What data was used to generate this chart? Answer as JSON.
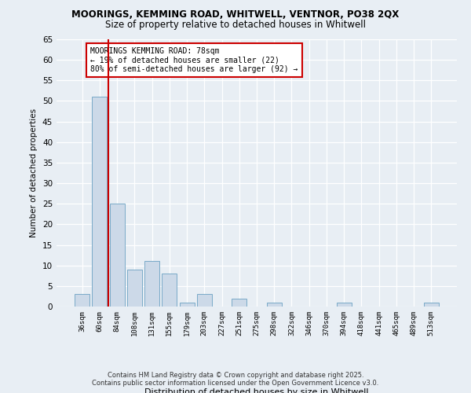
{
  "title1": "MOORINGS, KEMMING ROAD, WHITWELL, VENTNOR, PO38 2QX",
  "title2": "Size of property relative to detached houses in Whitwell",
  "xlabel": "Distribution of detached houses by size in Whitwell",
  "ylabel": "Number of detached properties",
  "categories": [
    "36sqm",
    "60sqm",
    "84sqm",
    "108sqm",
    "131sqm",
    "155sqm",
    "179sqm",
    "203sqm",
    "227sqm",
    "251sqm",
    "275sqm",
    "298sqm",
    "322sqm",
    "346sqm",
    "370sqm",
    "394sqm",
    "418sqm",
    "441sqm",
    "465sqm",
    "489sqm",
    "513sqm"
  ],
  "values": [
    3,
    51,
    25,
    9,
    11,
    8,
    1,
    3,
    0,
    2,
    0,
    1,
    0,
    0,
    0,
    1,
    0,
    0,
    0,
    0,
    1
  ],
  "bar_color": "#ccd9e8",
  "bar_edge_color": "#7aaac8",
  "vline_color": "#cc0000",
  "annotation_text": "MOORINGS KEMMING ROAD: 78sqm\n← 19% of detached houses are smaller (22)\n80% of semi-detached houses are larger (92) →",
  "annotation_box_color": "#ffffff",
  "annotation_box_edge": "#cc0000",
  "bg_color": "#e8eef4",
  "grid_color": "#ffffff",
  "footer": "Contains HM Land Registry data © Crown copyright and database right 2025.\nContains public sector information licensed under the Open Government Licence v3.0.",
  "ylim": [
    0,
    65
  ],
  "yticks": [
    0,
    5,
    10,
    15,
    20,
    25,
    30,
    35,
    40,
    45,
    50,
    55,
    60,
    65
  ]
}
